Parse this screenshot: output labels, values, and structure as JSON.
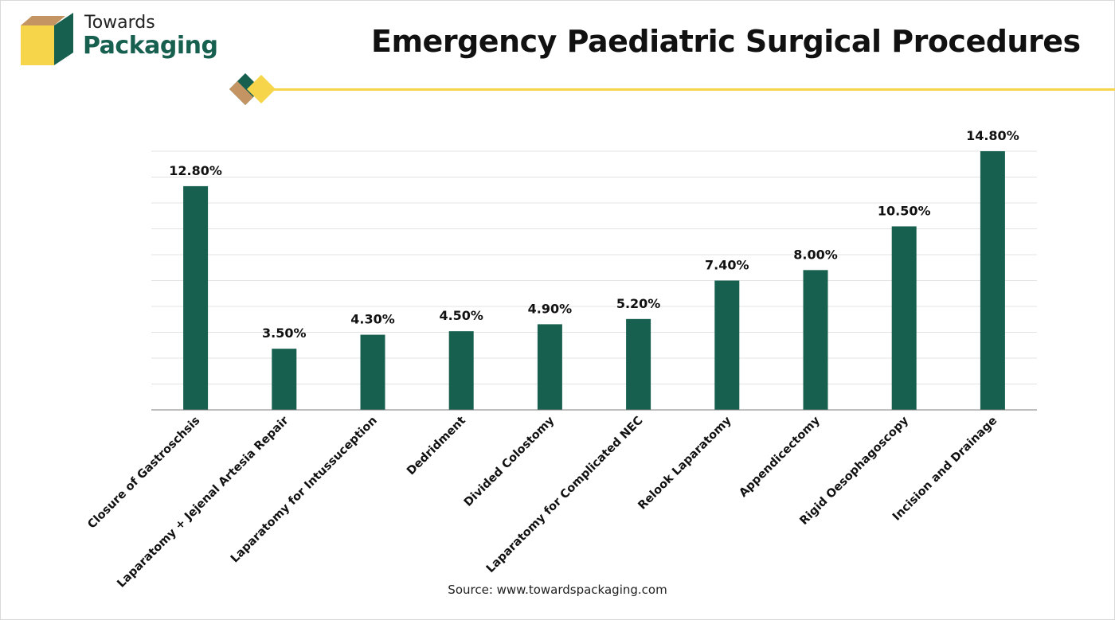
{
  "brand": {
    "line1": "Towards",
    "line2": "Packaging",
    "primary_color": "#17604f",
    "accent_color": "#f7d54a",
    "tan_color": "#c49563"
  },
  "footer": {
    "source": "Source: www.towardspackaging.com"
  },
  "chart_data": {
    "type": "bar",
    "title": "Emergency Paediatric Surgical Procedures",
    "categories": [
      "Closure of Gastroschsis",
      "Laparatomy + Jejenal Artesia Repair",
      "Laparatomy for Intussuception",
      "Dedridment",
      "Divided Colostomy",
      "Laparatomy for Complicated NEC",
      "Relook Laparatomy",
      "Appendicectomy",
      "Rigid Oesophagoscopy",
      "Incision and Drainage"
    ],
    "values": [
      12.8,
      3.5,
      4.3,
      4.5,
      4.9,
      5.2,
      7.4,
      8.0,
      10.5,
      14.8
    ],
    "labels": [
      "12.80%",
      "3.50%",
      "4.30%",
      "4.50%",
      "4.90%",
      "5.20%",
      "7.40%",
      "8.00%",
      "10.50%",
      "14.80%"
    ],
    "ylim": [
      0,
      14.8
    ],
    "grid": true,
    "bar_color": "#17604f",
    "xlabel": "",
    "ylabel": ""
  }
}
